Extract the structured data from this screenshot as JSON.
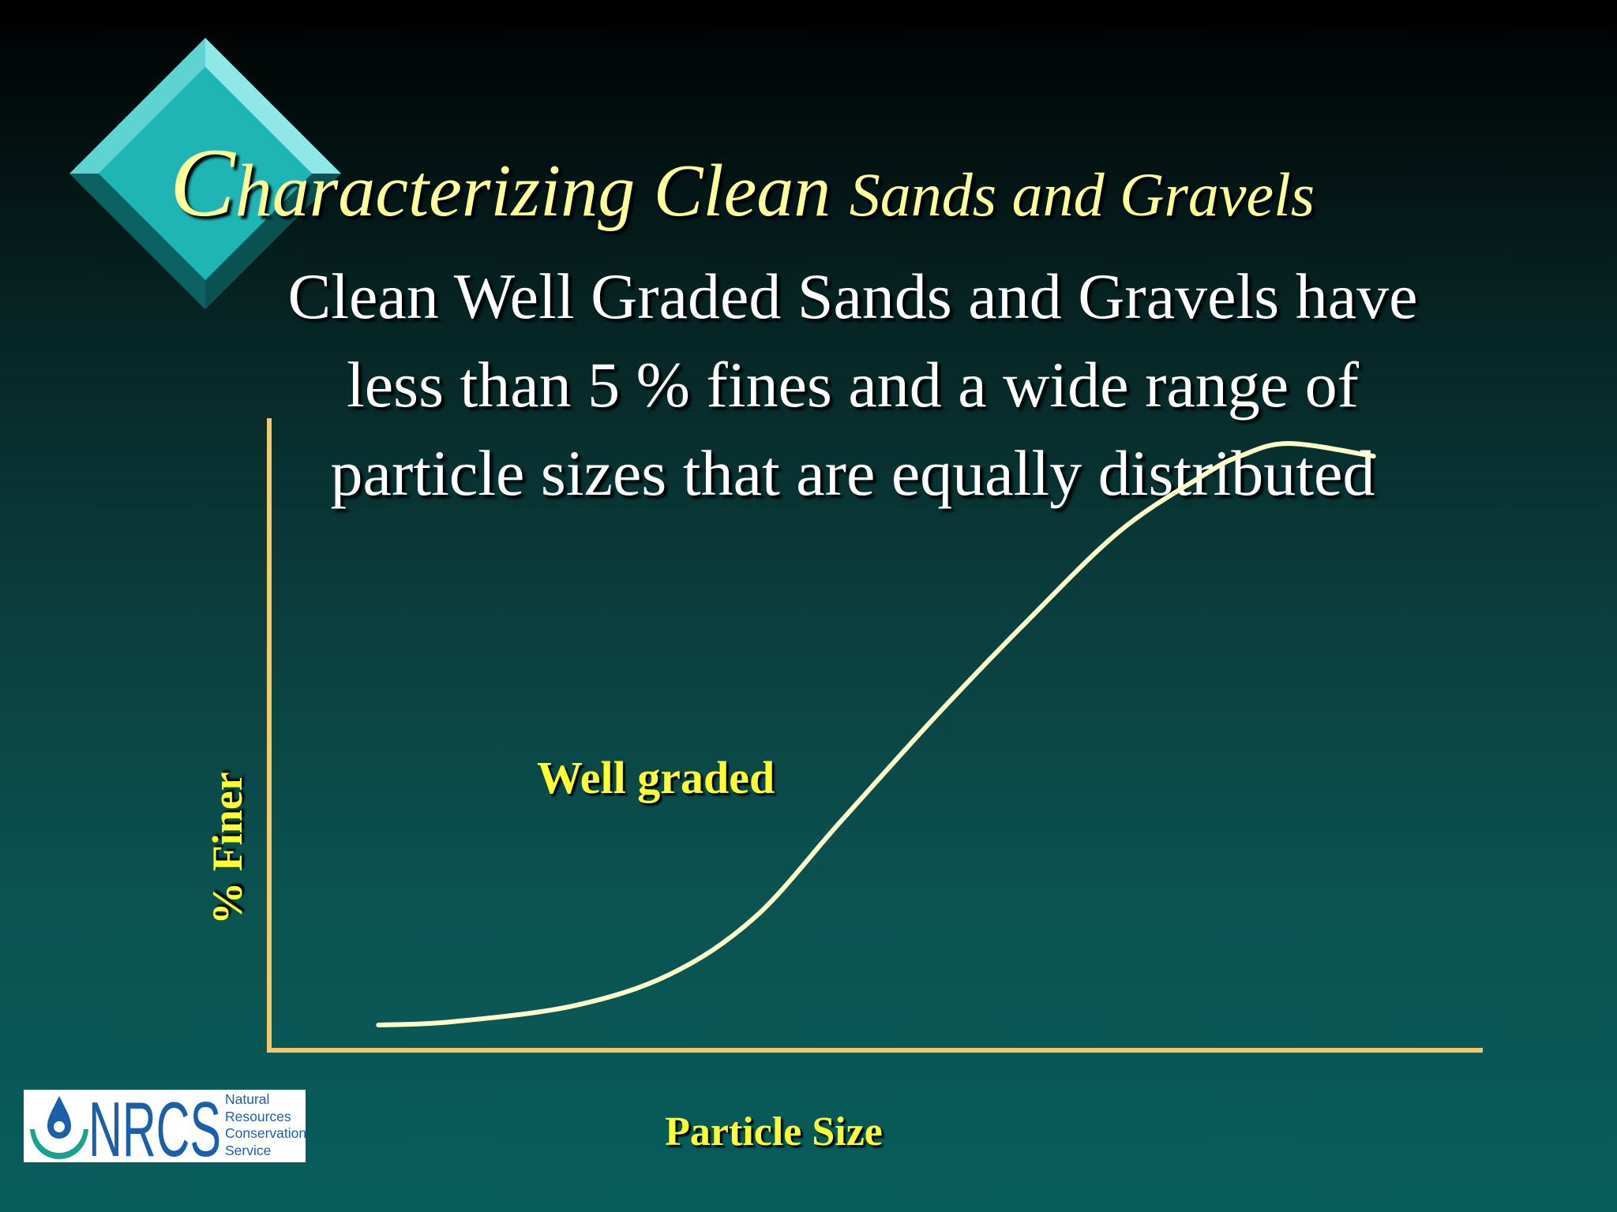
{
  "slide": {
    "title_initial": "C",
    "title_part1": "haracterizing Clean ",
    "title_part2": "Sands and Gravels",
    "subtitle_lines": [
      "Clean Well Graded Sands and Gravels have",
      "less than 5 % fines and a wide range of",
      "particle sizes that are equally distributed"
    ],
    "colors": {
      "title": "#ffff99",
      "subtitle": "#ffffff",
      "labels": "#ffff33",
      "axis": "#f5c96a",
      "curve": "#ffffcc",
      "diamond": "#1fb5b5"
    },
    "decor_icon": "teal-diamond-bullet"
  },
  "chart_data": {
    "type": "line",
    "title": "",
    "xlabel": "Particle Size",
    "ylabel": "% Finer",
    "x_ticks": false,
    "y_ticks": false,
    "grid": false,
    "xlim": [
      0,
      100
    ],
    "ylim": [
      0,
      100
    ],
    "annotations": [
      {
        "text": "Well graded",
        "x": 22,
        "y": 41
      }
    ],
    "series": [
      {
        "name": "",
        "x": [
          9,
          15,
          25,
          33,
          40,
          47,
          55,
          62,
          70,
          77,
          80,
          84,
          91
        ],
        "y": [
          4,
          4.5,
          7,
          12,
          21,
          36,
          53,
          67,
          82,
          91,
          94,
          96,
          94
        ]
      }
    ]
  },
  "logo": {
    "icon": "nrcs-water-drop-logo",
    "wordmark": "NRCS",
    "text_lines": [
      "Natural",
      "Resources",
      "Conservation",
      "Service"
    ]
  }
}
